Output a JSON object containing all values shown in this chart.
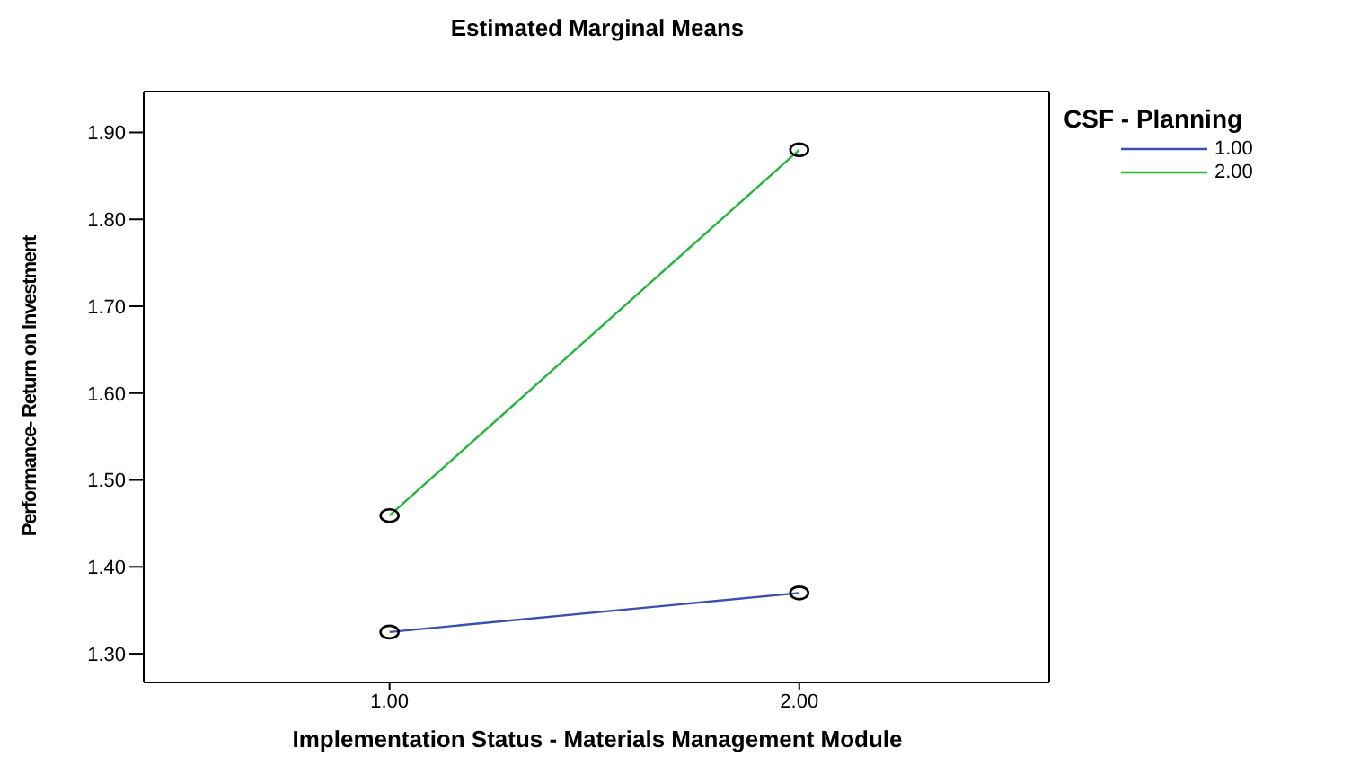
{
  "chart_data": {
    "type": "line",
    "title": "Estimated Marginal Means",
    "xlabel": "Implementation Status - Materials Management Module",
    "ylabel": "Performance- Return on Investment",
    "legend_title": "CSF - Planning",
    "x": [
      1,
      2
    ],
    "xlim": [
      0.4,
      2.61
    ],
    "xticks": [
      {
        "value": 1,
        "label": "1.00"
      },
      {
        "value": 2,
        "label": "2.00"
      }
    ],
    "ylim": [
      1.267,
      1.947
    ],
    "yticks": [
      {
        "value": 1.3,
        "label": "1.30"
      },
      {
        "value": 1.4,
        "label": "1.40"
      },
      {
        "value": 1.5,
        "label": "1.50"
      },
      {
        "value": 1.6,
        "label": "1.60"
      },
      {
        "value": 1.7,
        "label": "1.70"
      },
      {
        "value": 1.8,
        "label": "1.80"
      },
      {
        "value": 1.9,
        "label": "1.90"
      }
    ],
    "series": [
      {
        "name": "1.00",
        "color": "#3a4fb0",
        "values": [
          1.325,
          1.37
        ]
      },
      {
        "name": "2.00",
        "color": "#22b83a",
        "values": [
          1.459,
          1.88
        ]
      }
    ],
    "marker": "circle",
    "line_style": "solid",
    "grid": false,
    "legend": "right"
  }
}
